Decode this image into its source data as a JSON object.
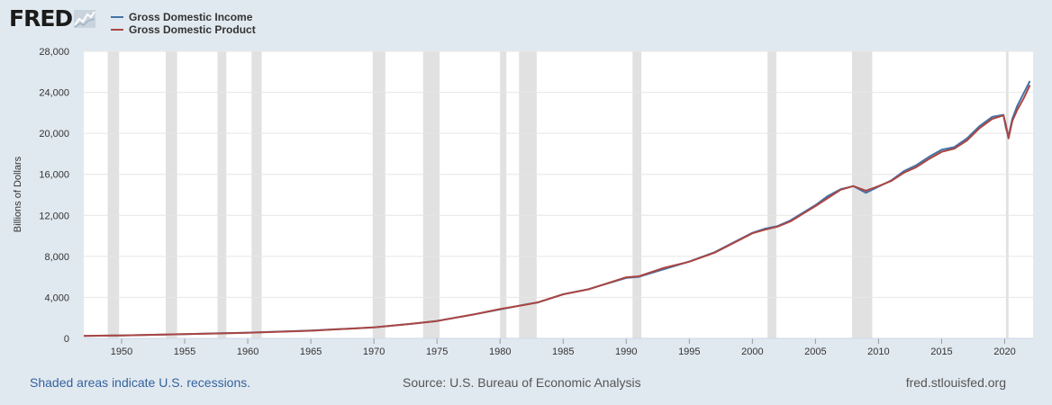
{
  "branding": {
    "logo_text": "FRED",
    "graph_icon": "line-chart-icon"
  },
  "footer": {
    "recession_note": "Shaded areas indicate U.S. recessions.",
    "source": "Source: U.S. Bureau of Economic Analysis",
    "site": "fred.stlouisfed.org"
  },
  "chart_data": {
    "type": "line",
    "title": "",
    "xlabel": "",
    "ylabel": "Billions of Dollars",
    "xlim": [
      1947,
      2022.25
    ],
    "ylim": [
      0,
      28000
    ],
    "yticks": [
      0,
      4000,
      8000,
      12000,
      16000,
      20000,
      24000,
      28000
    ],
    "ytick_labels": [
      "0",
      "4,000",
      "8,000",
      "12,000",
      "16,000",
      "20,000",
      "24,000",
      "28,000"
    ],
    "xticks": [
      "1950",
      "1955",
      "1960",
      "1965",
      "1970",
      "1975",
      "1980",
      "1985",
      "1990",
      "1995",
      "2000",
      "2005",
      "2010",
      "2015",
      "2020"
    ],
    "grid": "horizontal",
    "legend_position": "top-left",
    "recessions": [
      [
        1948.9,
        1949.8
      ],
      [
        1953.5,
        1954.4
      ],
      [
        1957.6,
        1958.3
      ],
      [
        1960.3,
        1961.1
      ],
      [
        1969.9,
        1970.9
      ],
      [
        1973.9,
        1975.2
      ],
      [
        1980.0,
        1980.5
      ],
      [
        1981.5,
        1982.9
      ],
      [
        1990.5,
        1991.2
      ],
      [
        2001.2,
        2001.9
      ],
      [
        2007.9,
        2009.5
      ],
      [
        2020.1,
        2020.3
      ]
    ],
    "recession_color": "#e1e1e1",
    "series": [
      {
        "name": "Gross Domestic Income",
        "color": "#4572a7",
        "points": [
          [
            1947,
            240
          ],
          [
            1950,
            290
          ],
          [
            1955,
            420
          ],
          [
            1960,
            560
          ],
          [
            1965,
            760
          ],
          [
            1970,
            1080
          ],
          [
            1973,
            1420
          ],
          [
            1975,
            1700
          ],
          [
            1978,
            2350
          ],
          [
            1980,
            2830
          ],
          [
            1982,
            3300
          ],
          [
            1983,
            3500
          ],
          [
            1985,
            4300
          ],
          [
            1987,
            4800
          ],
          [
            1990,
            5900
          ],
          [
            1991,
            6000
          ],
          [
            1993,
            6750
          ],
          [
            1995,
            7500
          ],
          [
            1997,
            8400
          ],
          [
            2000,
            10300
          ],
          [
            2001,
            10700
          ],
          [
            2002,
            10950
          ],
          [
            2003,
            11500
          ],
          [
            2005,
            13000
          ],
          [
            2006,
            13900
          ],
          [
            2007,
            14550
          ],
          [
            2008,
            14850
          ],
          [
            2009,
            14200
          ],
          [
            2010,
            14800
          ],
          [
            2011,
            15400
          ],
          [
            2012,
            16300
          ],
          [
            2013,
            16900
          ],
          [
            2014,
            17700
          ],
          [
            2015,
            18400
          ],
          [
            2016,
            18650
          ],
          [
            2017,
            19500
          ],
          [
            2018,
            20700
          ],
          [
            2019,
            21600
          ],
          [
            2019.9,
            21800
          ],
          [
            2020.1,
            20500
          ],
          [
            2020.3,
            19700
          ],
          [
            2020.6,
            21400
          ],
          [
            2021,
            22700
          ],
          [
            2021.5,
            23900
          ],
          [
            2022,
            25100
          ]
        ]
      },
      {
        "name": "Gross Domestic Product",
        "color": "#aa4643",
        "points": [
          [
            1947,
            245
          ],
          [
            1950,
            290
          ],
          [
            1955,
            420
          ],
          [
            1960,
            545
          ],
          [
            1965,
            745
          ],
          [
            1970,
            1075
          ],
          [
            1973,
            1420
          ],
          [
            1975,
            1690
          ],
          [
            1978,
            2360
          ],
          [
            1980,
            2860
          ],
          [
            1982,
            3280
          ],
          [
            1983,
            3520
          ],
          [
            1985,
            4300
          ],
          [
            1987,
            4780
          ],
          [
            1990,
            5960
          ],
          [
            1991,
            6060
          ],
          [
            1993,
            6880
          ],
          [
            1995,
            7480
          ],
          [
            1997,
            8360
          ],
          [
            2000,
            10250
          ],
          [
            2001,
            10600
          ],
          [
            2002,
            10900
          ],
          [
            2003,
            11400
          ],
          [
            2005,
            12900
          ],
          [
            2006,
            13700
          ],
          [
            2007,
            14500
          ],
          [
            2008,
            14850
          ],
          [
            2009,
            14400
          ],
          [
            2010,
            14850
          ],
          [
            2011,
            15350
          ],
          [
            2012,
            16150
          ],
          [
            2013,
            16700
          ],
          [
            2014,
            17500
          ],
          [
            2015,
            18200
          ],
          [
            2016,
            18500
          ],
          [
            2017,
            19300
          ],
          [
            2018,
            20500
          ],
          [
            2019,
            21400
          ],
          [
            2019.9,
            21750
          ],
          [
            2020.1,
            20800
          ],
          [
            2020.3,
            19500
          ],
          [
            2020.6,
            21200
          ],
          [
            2021,
            22300
          ],
          [
            2021.5,
            23400
          ],
          [
            2022,
            24700
          ]
        ]
      }
    ]
  }
}
